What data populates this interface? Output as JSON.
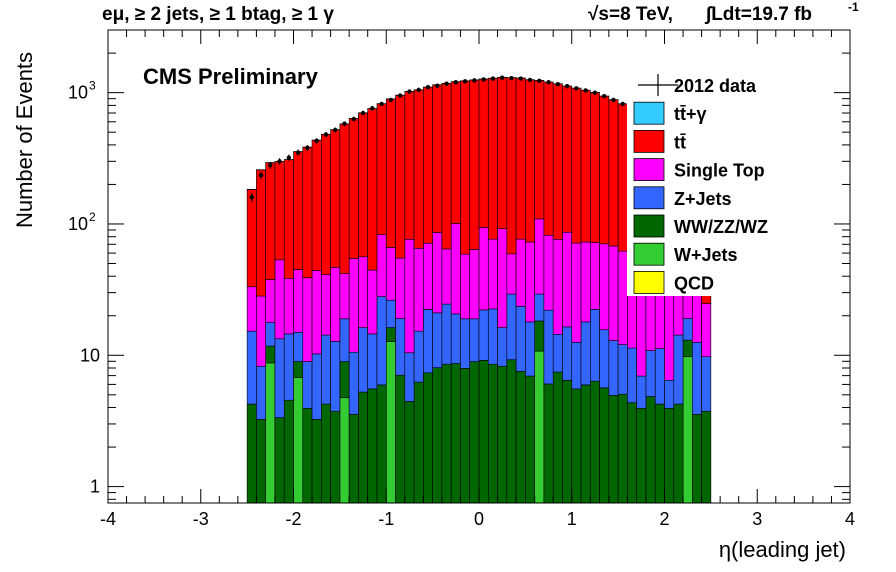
{
  "chart_data": {
    "type": "histogram-stacked",
    "header_left": "eμ, ≥ 2 jets, ≥ 1 btag, ≥ 1 γ",
    "header_right_energy": "√s=8 TeV,",
    "header_right_lumi": "∫Ldt=19.7 fb",
    "header_right_lumi_exp": "-1",
    "annotation": "CMS Preliminary",
    "xlabel": "η(leading jet)",
    "ylabel": "Number of Events",
    "xlim": [
      -4,
      4
    ],
    "ylim": [
      0.75,
      3000
    ],
    "ylog": true,
    "x_ticks": [
      "-4",
      "-3",
      "-2",
      "-1",
      "0",
      "1",
      "2",
      "3",
      "4"
    ],
    "y_ticks": [
      {
        "value": 1,
        "label": "1"
      },
      {
        "value": 10,
        "label": "10"
      },
      {
        "value": 100,
        "label": "10",
        "exp": "2"
      },
      {
        "value": 1000,
        "label": "10",
        "exp": "3"
      }
    ],
    "legend_position": "top-right",
    "bin_low_edges": [
      -2.5,
      -2.4,
      -2.3,
      -2.2,
      -2.1,
      -2.0,
      -1.9,
      -1.8,
      -1.7,
      -1.6,
      -1.5,
      -1.4,
      -1.3,
      -1.2,
      -1.1,
      -1.0,
      -0.9,
      -0.8,
      -0.7,
      -0.6,
      -0.5,
      -0.4,
      -0.3,
      -0.2,
      -0.1,
      0.0,
      0.1,
      0.2,
      0.3,
      0.4,
      0.5,
      0.6,
      0.7,
      0.8,
      0.9,
      1.0,
      1.1,
      1.2,
      1.3,
      1.4,
      1.5,
      1.6,
      1.7,
      1.8,
      1.9,
      2.0,
      2.1,
      2.2,
      2.3,
      2.4
    ],
    "bin_width": 0.1,
    "data": [
      160,
      235,
      280,
      300,
      320,
      350,
      380,
      430,
      480,
      520,
      580,
      630,
      700,
      760,
      820,
      880,
      950,
      1020,
      1050,
      1100,
      1130,
      1170,
      1200,
      1220,
      1240,
      1260,
      1280,
      1300,
      1290,
      1280,
      1250,
      1230,
      1200,
      1160,
      1120,
      1080,
      1040,
      1000,
      940,
      880,
      820,
      760,
      690,
      620,
      540,
      470,
      410,
      350,
      300,
      260
    ],
    "series": [
      {
        "name": "QCD",
        "color": "#ffff00",
        "values": [
          0,
          0,
          0,
          0,
          0,
          0,
          0,
          0,
          0,
          0,
          0,
          0,
          0,
          0,
          0,
          0,
          0,
          0,
          0,
          0,
          0,
          0,
          0,
          0,
          0,
          0,
          0,
          0,
          0,
          0,
          0,
          0,
          0,
          0,
          0,
          0,
          0,
          0,
          0,
          0,
          0,
          0,
          0,
          0,
          0,
          0,
          0,
          0,
          0,
          0
        ]
      },
      {
        "name": "W+Jets",
        "color": "#33cc33",
        "values": [
          0,
          0,
          8,
          0,
          0,
          6,
          0,
          0,
          0,
          0,
          4,
          0,
          0,
          0,
          0,
          12,
          0,
          0,
          0,
          0,
          0,
          0,
          0,
          0,
          0,
          0,
          0,
          0,
          0,
          0,
          0,
          10,
          0,
          0,
          0,
          0,
          0,
          0,
          0,
          0,
          0,
          0,
          0,
          0,
          0,
          0,
          0,
          9,
          0,
          0
        ]
      },
      {
        "name": "WW/ZZ/WZ",
        "color": "#006600",
        "values": [
          3.5,
          2.5,
          3,
          2.6,
          3.8,
          2.2,
          3.2,
          2.5,
          3.5,
          3.0,
          4.2,
          2.8,
          4.5,
          4.8,
          5.2,
          3.5,
          6.3,
          3.7,
          5.5,
          6.6,
          7.3,
          7.8,
          7.9,
          7.2,
          8.2,
          8.4,
          7.8,
          7.5,
          8.5,
          6.8,
          6.2,
          7.5,
          5.3,
          6.7,
          5.7,
          4.8,
          5.2,
          5.6,
          4.9,
          4.2,
          4.3,
          3.6,
          3.2,
          4.1,
          3.5,
          3.2,
          3.5,
          3.3,
          2.8,
          3.0
        ]
      },
      {
        "name": "Z+Jets",
        "color": "#3366ff",
        "values": [
          11,
          5,
          6,
          10,
          10,
          6,
          5,
          7,
          10,
          9,
          10,
          7,
          11,
          9,
          22,
          10,
          12,
          6,
          9,
          15,
          13,
          16,
          12,
          11,
          10,
          13,
          14,
          8,
          20,
          16,
          11,
          11,
          16,
          7,
          10,
          7,
          12,
          16,
          10,
          8,
          7,
          7,
          3,
          6,
          7,
          2.5,
          10,
          6,
          9,
          6
        ]
      },
      {
        "name": "Single Top",
        "color": "#ff00ff",
        "values": [
          18,
          20,
          20,
          40,
          24,
          30,
          30,
          34,
          27,
          34,
          23,
          44,
          40,
          30,
          55,
          40,
          36,
          66,
          50,
          49,
          65,
          40,
          80,
          40,
          45,
          72,
          54,
          76,
          30,
          53,
          55,
          80,
          60,
          62,
          70,
          59,
          55,
          50,
          55,
          55,
          50,
          41,
          37,
          36,
          26,
          40,
          24,
          29,
          22,
          15
        ]
      },
      {
        "name": "tt̄",
        "color": "#ff0000",
        "values": [
          150,
          230,
          255,
          245,
          270,
          310,
          345,
          390,
          440,
          475,
          535,
          580,
          645,
          710,
          740,
          830,
          900,
          945,
          985,
          1030,
          1060,
          1110,
          1110,
          1170,
          1185,
          1175,
          1210,
          1215,
          1240,
          1215,
          1180,
          1130,
          1120,
          1090,
          1035,
          1010,
          970,
          930,
          870,
          815,
          760,
          700,
          650,
          580,
          500,
          425,
          370,
          310,
          265,
          235
        ]
      },
      {
        "name": "tt̄+γ",
        "color": "#33ccff",
        "values": [
          0.5,
          0.7,
          0.8,
          0.9,
          1.0,
          1.1,
          1.2,
          1.3,
          1.4,
          1.5,
          1.6,
          1.7,
          1.8,
          1.9,
          2.0,
          2.1,
          2.2,
          2.3,
          2.4,
          2.4,
          2.5,
          2.5,
          2.6,
          2.6,
          2.6,
          2.6,
          2.6,
          2.6,
          2.6,
          2.5,
          2.5,
          2.4,
          2.4,
          2.3,
          2.2,
          2.1,
          2.0,
          1.9,
          1.8,
          1.7,
          1.6,
          1.5,
          1.4,
          1.3,
          1.2,
          1.1,
          1.0,
          0.9,
          0.8,
          0.7
        ]
      }
    ],
    "legend": [
      {
        "label": "2012 data",
        "kind": "data"
      },
      {
        "label": "tt̄+γ",
        "color": "#33ccff",
        "kind": "fill"
      },
      {
        "label": "tt̄",
        "color": "#ff0000",
        "kind": "fill"
      },
      {
        "label": "Single Top",
        "color": "#ff00ff",
        "kind": "fill"
      },
      {
        "label": "Z+Jets",
        "color": "#3366ff",
        "kind": "fill"
      },
      {
        "label": "WW/ZZ/WZ",
        "color": "#006600",
        "kind": "fill"
      },
      {
        "label": "W+Jets",
        "color": "#33cc33",
        "kind": "fill"
      },
      {
        "label": "QCD",
        "color": "#ffff00",
        "kind": "fill"
      }
    ]
  }
}
